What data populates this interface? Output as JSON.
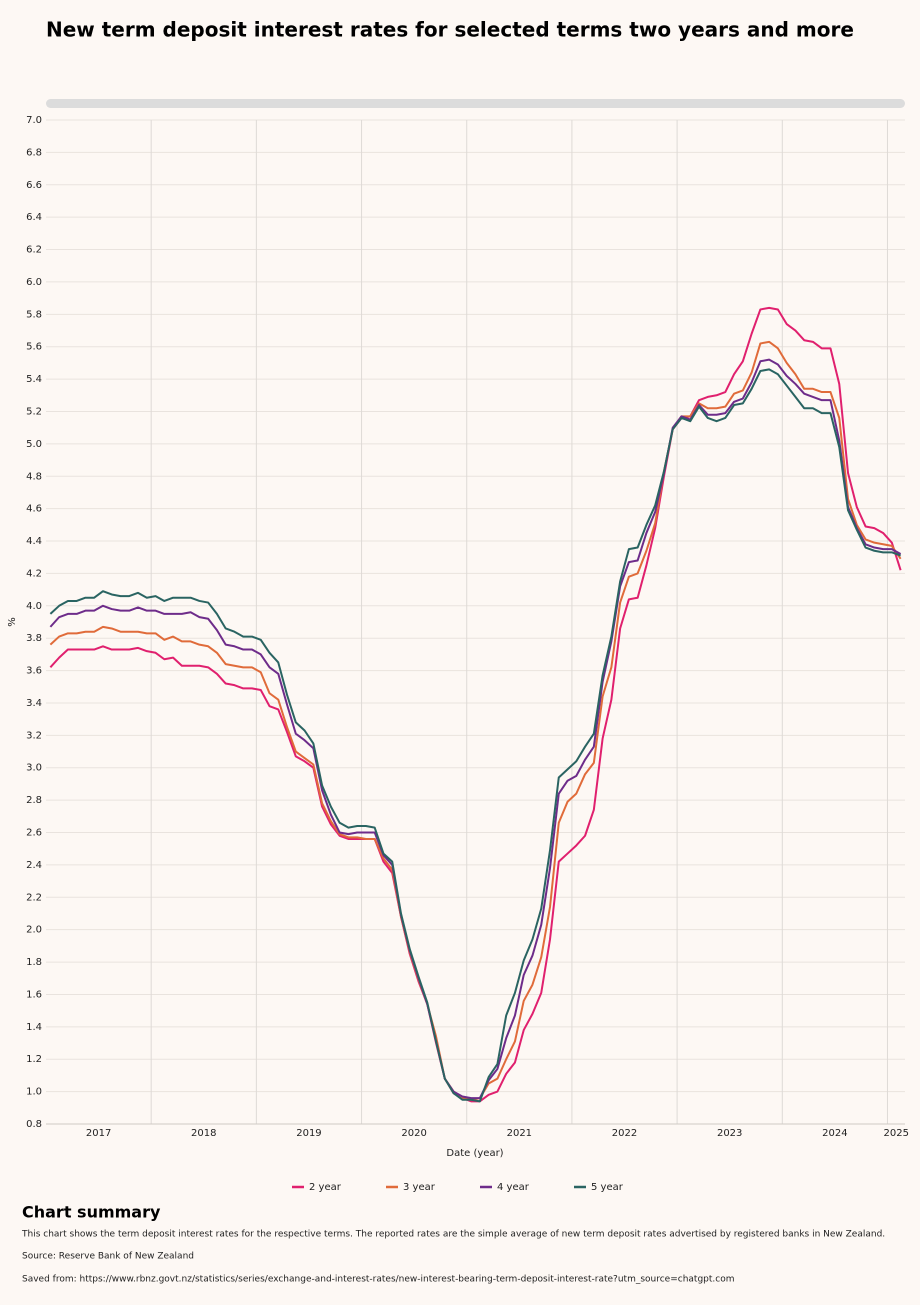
{
  "chart_data": {
    "type": "line",
    "title": "New term deposit interest rates for selected terms two years and more",
    "y_label": "%",
    "x_label": "Date (year)",
    "categories": [
      "2017",
      null,
      null,
      null,
      null,
      null,
      null,
      null,
      null,
      null,
      null,
      null,
      "2018",
      null,
      null,
      null,
      null,
      null,
      null,
      null,
      null,
      null,
      null,
      null,
      "2019",
      null,
      null,
      null,
      null,
      null,
      null,
      null,
      null,
      null,
      null,
      null,
      "2020",
      null,
      null,
      null,
      null,
      null,
      null,
      null,
      null,
      null,
      null,
      null,
      "2021",
      null,
      null,
      null,
      null,
      null,
      null,
      null,
      null,
      null,
      null,
      null,
      "2022",
      null,
      null,
      null,
      null,
      null,
      null,
      null,
      null,
      null,
      null,
      null,
      "2023",
      null,
      null,
      null,
      null,
      null,
      null,
      null,
      null,
      null,
      null,
      null,
      "2024",
      null,
      null,
      null,
      null,
      null,
      null,
      null,
      null,
      null,
      null,
      null,
      "2025",
      null
    ],
    "ylim": [
      0.8,
      7.0
    ],
    "yticks": [
      0.8,
      {
        "value": 1,
        "label": "1.0"
      },
      1.2,
      1.4,
      1.6,
      1.8,
      {
        "value": 2,
        "label": "2.0"
      },
      2.2,
      2.4,
      2.6,
      2.8,
      {
        "value": 3,
        "label": "3.0"
      },
      3.2,
      3.4,
      3.6,
      3.8,
      {
        "value": 4,
        "label": "4.0"
      },
      4.2,
      4.4,
      4.6,
      4.8,
      {
        "value": 5,
        "label": "5.0"
      },
      5.2,
      5.4,
      5.6,
      5.8,
      {
        "value": 6,
        "label": "6.0"
      },
      6.2,
      6.4,
      6.6,
      6.8,
      {
        "value": 7,
        "label": "7.0"
      }
    ],
    "grid": true,
    "legend": "bottom",
    "series": [
      {
        "name": "2 year",
        "color": "#e0206e",
        "values": [
          3.62,
          3.68,
          3.73,
          3.73,
          3.73,
          3.73,
          3.75,
          3.73,
          3.73,
          3.73,
          3.74,
          3.72,
          3.71,
          3.67,
          3.68,
          3.63,
          3.63,
          3.63,
          3.62,
          3.58,
          3.52,
          3.51,
          3.49,
          3.49,
          3.48,
          3.38,
          3.36,
          3.22,
          3.07,
          3.04,
          3.0,
          2.76,
          2.65,
          2.58,
          2.56,
          2.56,
          2.56,
          2.56,
          2.42,
          2.35,
          2.08,
          1.85,
          1.68,
          1.54,
          1.3,
          1.08,
          0.99,
          0.96,
          0.94,
          0.94,
          0.98,
          1.0,
          1.11,
          1.18,
          1.38,
          1.48,
          1.61,
          1.94,
          2.42,
          2.47,
          2.52,
          2.58,
          2.74,
          3.18,
          3.42,
          3.86,
          4.04,
          4.05,
          4.25,
          4.48,
          4.8,
          5.09,
          5.16,
          5.17,
          5.27,
          5.29,
          5.3,
          5.32,
          5.43,
          5.51,
          5.68,
          5.83,
          5.84,
          5.83,
          5.74,
          5.7,
          5.64,
          5.63,
          5.59,
          5.59,
          5.37,
          4.82,
          4.61,
          4.49,
          4.48,
          4.45,
          4.39,
          4.22
        ]
      },
      {
        "name": "3 year",
        "color": "#e06b3a",
        "values": [
          3.76,
          3.81,
          3.83,
          3.83,
          3.84,
          3.84,
          3.87,
          3.86,
          3.84,
          3.84,
          3.84,
          3.83,
          3.83,
          3.79,
          3.81,
          3.78,
          3.78,
          3.76,
          3.75,
          3.71,
          3.64,
          3.63,
          3.62,
          3.62,
          3.59,
          3.46,
          3.42,
          3.25,
          3.1,
          3.06,
          3.02,
          2.78,
          2.67,
          2.59,
          2.57,
          2.57,
          2.56,
          2.56,
          2.44,
          2.37,
          2.08,
          1.86,
          1.69,
          1.54,
          1.34,
          1.08,
          1.0,
          0.96,
          0.95,
          0.96,
          1.05,
          1.08,
          1.2,
          1.31,
          1.56,
          1.66,
          1.83,
          2.14,
          2.66,
          2.79,
          2.84,
          2.96,
          3.03,
          3.44,
          3.62,
          4.02,
          4.18,
          4.2,
          4.34,
          4.51,
          4.83,
          5.09,
          5.17,
          5.17,
          5.25,
          5.22,
          5.22,
          5.23,
          5.31,
          5.33,
          5.44,
          5.62,
          5.63,
          5.59,
          5.5,
          5.43,
          5.34,
          5.34,
          5.32,
          5.32,
          5.16,
          4.66,
          4.5,
          4.41,
          4.39,
          4.38,
          4.37,
          4.29
        ]
      },
      {
        "name": "4 year",
        "color": "#6e2c8a",
        "values": [
          3.87,
          3.93,
          3.95,
          3.95,
          3.97,
          3.97,
          4.0,
          3.98,
          3.97,
          3.97,
          3.99,
          3.97,
          3.97,
          3.95,
          3.95,
          3.95,
          3.96,
          3.93,
          3.92,
          3.85,
          3.76,
          3.75,
          3.73,
          3.73,
          3.7,
          3.62,
          3.58,
          3.39,
          3.21,
          3.17,
          3.12,
          2.86,
          2.71,
          2.6,
          2.59,
          2.6,
          2.6,
          2.6,
          2.46,
          2.4,
          2.09,
          1.87,
          1.7,
          1.54,
          1.31,
          1.08,
          1.0,
          0.97,
          0.96,
          0.96,
          1.07,
          1.14,
          1.33,
          1.47,
          1.72,
          1.84,
          2.03,
          2.38,
          2.84,
          2.92,
          2.95,
          3.05,
          3.13,
          3.53,
          3.78,
          4.12,
          4.27,
          4.28,
          4.45,
          4.58,
          4.82,
          5.1,
          5.17,
          5.15,
          5.24,
          5.18,
          5.18,
          5.19,
          5.26,
          5.28,
          5.38,
          5.51,
          5.52,
          5.49,
          5.42,
          5.37,
          5.31,
          5.29,
          5.27,
          5.27,
          5.02,
          4.61,
          4.48,
          4.38,
          4.36,
          4.35,
          4.35,
          4.32
        ]
      },
      {
        "name": "5 year",
        "color": "#2a6462",
        "values": [
          3.95,
          4.0,
          4.03,
          4.03,
          4.05,
          4.05,
          4.09,
          4.07,
          4.06,
          4.06,
          4.08,
          4.05,
          4.06,
          4.03,
          4.05,
          4.05,
          4.05,
          4.03,
          4.02,
          3.95,
          3.86,
          3.84,
          3.81,
          3.81,
          3.79,
          3.71,
          3.65,
          3.45,
          3.28,
          3.23,
          3.15,
          2.89,
          2.76,
          2.66,
          2.63,
          2.64,
          2.64,
          2.63,
          2.47,
          2.42,
          2.1,
          1.88,
          1.71,
          1.55,
          1.31,
          1.08,
          0.99,
          0.95,
          0.95,
          0.94,
          1.09,
          1.17,
          1.47,
          1.61,
          1.81,
          1.94,
          2.13,
          2.49,
          2.94,
          2.99,
          3.04,
          3.13,
          3.21,
          3.57,
          3.81,
          4.15,
          4.35,
          4.36,
          4.5,
          4.62,
          4.83,
          5.09,
          5.16,
          5.14,
          5.23,
          5.16,
          5.14,
          5.16,
          5.24,
          5.25,
          5.34,
          5.45,
          5.46,
          5.43,
          5.36,
          5.29,
          5.22,
          5.22,
          5.19,
          5.19,
          4.98,
          4.59,
          4.47,
          4.36,
          4.34,
          4.33,
          4.33,
          4.31
        ]
      }
    ]
  },
  "summary": {
    "heading": "Chart summary",
    "text": "This chart shows the term deposit interest rates for the respective terms. The reported rates are the simple average of new term deposit rates advertised by registered banks in New Zealand.",
    "source": "Source: Reserve Bank of New Zealand",
    "saved_from": "Saved from: https://www.rbnz.govt.nz/statistics/series/exchange-and-interest-rates/new-interest-bearing-term-deposit-interest-rate?utm_source=chatgpt.com"
  }
}
